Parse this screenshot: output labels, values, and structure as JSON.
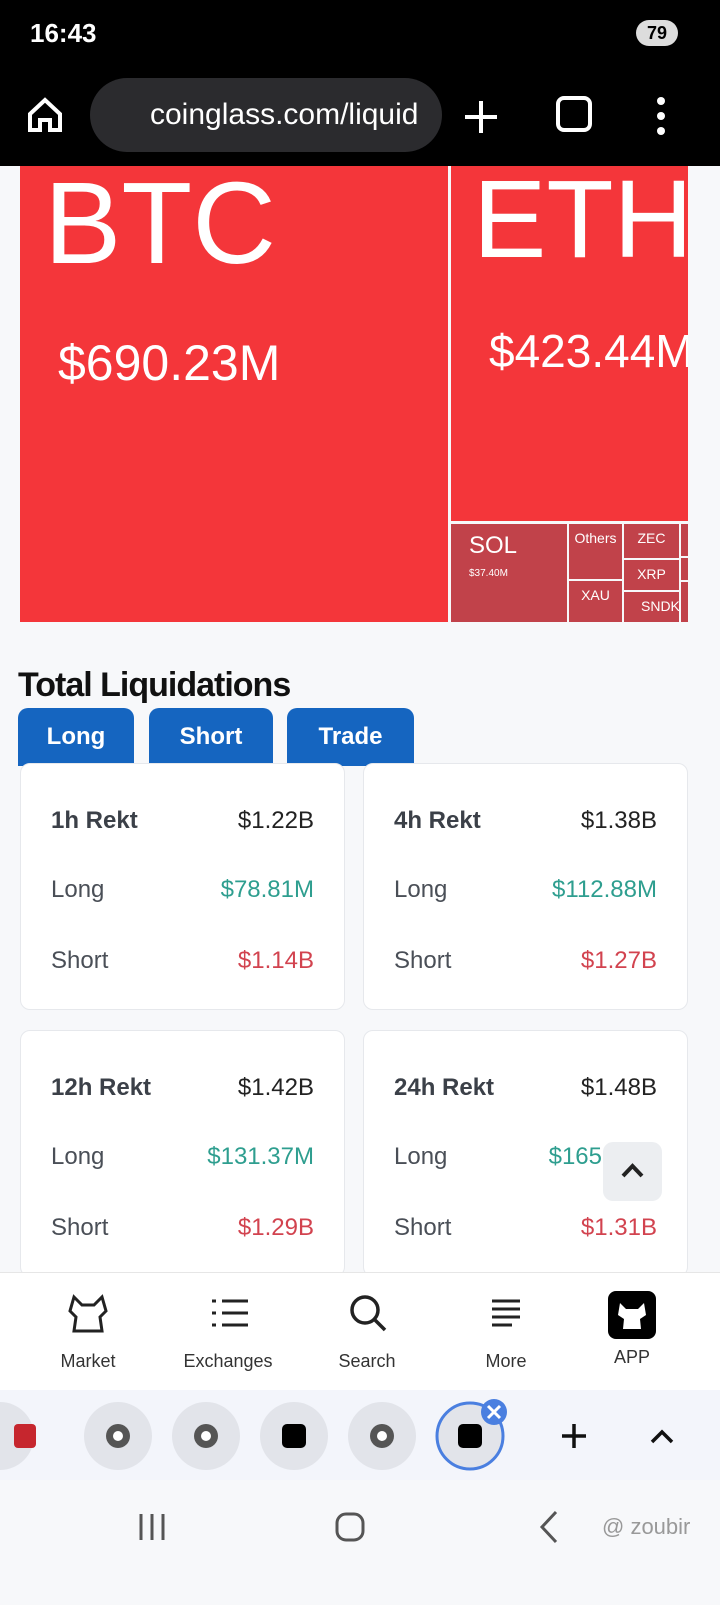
{
  "status_bar": {
    "time": "16:43",
    "battery": "79"
  },
  "browser": {
    "url": "coinglass.com/liquid"
  },
  "treemap": {
    "tiles": [
      {
        "label": "BTC",
        "value": "$690.23M"
      },
      {
        "label": "ETH",
        "value": "$423.44M"
      },
      {
        "label": "SOL",
        "value": "$37.40M"
      },
      {
        "label": "Others"
      },
      {
        "label": "XAU"
      },
      {
        "label": "ZEC"
      },
      {
        "label": "XRP"
      },
      {
        "label": "SNDK"
      }
    ]
  },
  "section": {
    "title": "Total Liquidations",
    "tabs": [
      "Long",
      "Short",
      "Trade"
    ]
  },
  "cards": [
    {
      "title": "1h Rekt",
      "total": "$1.22B",
      "rows": [
        {
          "label": "Long",
          "value": "$78.81M"
        },
        {
          "label": "Short",
          "value": "$1.14B"
        }
      ]
    },
    {
      "title": "4h Rekt",
      "total": "$1.38B",
      "rows": [
        {
          "label": "Long",
          "value": "$112.88M"
        },
        {
          "label": "Short",
          "value": "$1.27B"
        }
      ]
    },
    {
      "title": "12h Rekt",
      "total": "$1.42B",
      "rows": [
        {
          "label": "Long",
          "value": "$131.37M"
        },
        {
          "label": "Short",
          "value": "$1.29B"
        }
      ]
    },
    {
      "title": "24h Rekt",
      "total": "$1.48B",
      "rows": [
        {
          "label": "Long",
          "value": "$165"
        },
        {
          "label": "Short",
          "value": "$1.31B"
        }
      ]
    }
  ],
  "bottom_nav": [
    "Market",
    "Exchanges",
    "Search",
    "More",
    "APP"
  ],
  "watermark": "@ zoubir"
}
